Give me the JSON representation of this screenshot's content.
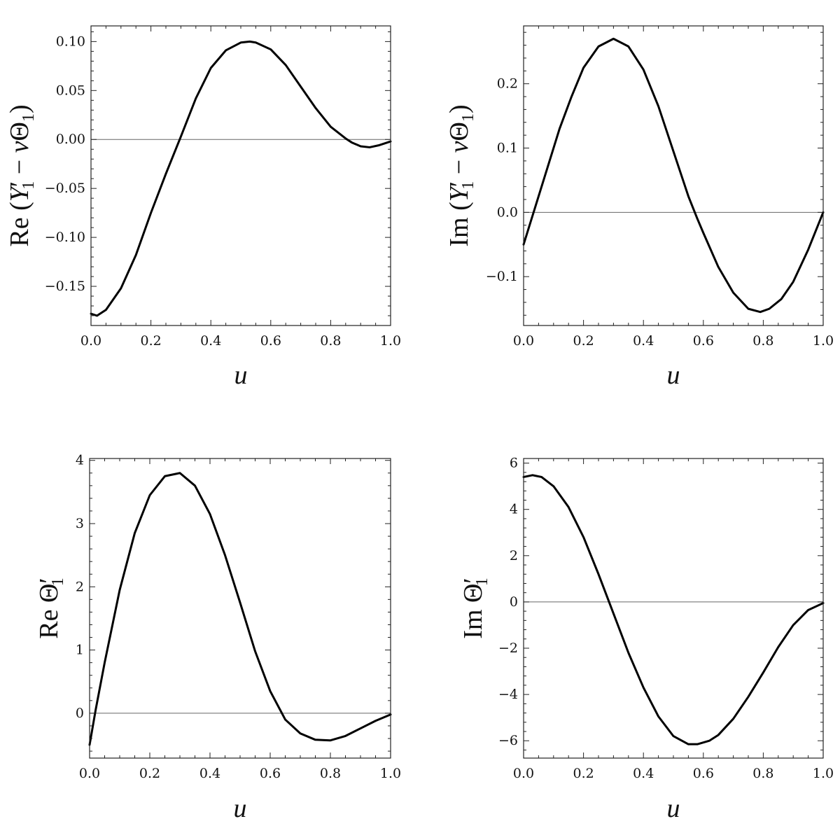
{
  "chart_data": [
    {
      "type": "line",
      "ylabel_parts": [
        "Re",
        " (",
        "Y",
        "′",
        "1",
        " − ",
        "ν",
        "Θ",
        "1",
        ")"
      ],
      "xlabel": "u",
      "xlim": [
        0,
        1
      ],
      "ylim": [
        -0.19,
        0.116
      ],
      "xticks": [
        0.0,
        0.2,
        0.4,
        0.6,
        0.8,
        1.0
      ],
      "xtick_labels": [
        "0.0",
        "0.2",
        "0.4",
        "0.6",
        "0.8",
        "1.0"
      ],
      "yticks": [
        -0.15,
        -0.1,
        -0.05,
        0.0,
        0.05,
        0.1
      ],
      "ytick_labels": [
        "−0.15",
        "−0.10",
        "−0.05",
        "0.00",
        "0.05",
        "0.10"
      ],
      "zero_line": true,
      "series": [
        {
          "x": [
            0.0,
            0.02,
            0.05,
            0.1,
            0.15,
            0.2,
            0.25,
            0.3,
            0.35,
            0.4,
            0.45,
            0.5,
            0.53,
            0.55,
            0.6,
            0.65,
            0.7,
            0.75,
            0.8,
            0.85,
            0.87,
            0.9,
            0.93,
            0.96,
            1.0
          ],
          "y": [
            -0.178,
            -0.18,
            -0.174,
            -0.152,
            -0.118,
            -0.075,
            -0.035,
            0.003,
            0.042,
            0.073,
            0.091,
            0.099,
            0.1,
            0.099,
            0.092,
            0.076,
            0.054,
            0.032,
            0.013,
            0.001,
            -0.003,
            -0.007,
            -0.008,
            -0.006,
            -0.002
          ]
        }
      ]
    },
    {
      "type": "line",
      "ylabel_parts": [
        "Im",
        " (",
        "Y",
        "′",
        "1",
        " − ",
        "ν",
        "Θ",
        "1",
        ")"
      ],
      "xlabel": "u",
      "xlim": [
        0,
        1
      ],
      "ylim": [
        -0.176,
        0.29
      ],
      "xticks": [
        0.0,
        0.2,
        0.4,
        0.6,
        0.8,
        1.0
      ],
      "xtick_labels": [
        "0.0",
        "0.2",
        "0.4",
        "0.6",
        "0.8",
        "1.0"
      ],
      "yticks": [
        -0.1,
        0.0,
        0.1,
        0.2
      ],
      "ytick_labels": [
        "−0.1",
        "0.0",
        "0.1",
        "0.2"
      ],
      "zero_line": true,
      "series": [
        {
          "x": [
            0.0,
            0.02,
            0.04,
            0.08,
            0.12,
            0.16,
            0.2,
            0.25,
            0.3,
            0.35,
            0.4,
            0.45,
            0.5,
            0.55,
            0.58,
            0.6,
            0.65,
            0.7,
            0.75,
            0.79,
            0.82,
            0.86,
            0.9,
            0.95,
            1.0
          ],
          "y": [
            -0.05,
            -0.02,
            0.01,
            0.07,
            0.13,
            0.18,
            0.225,
            0.258,
            0.27,
            0.258,
            0.222,
            0.165,
            0.095,
            0.025,
            -0.01,
            -0.032,
            -0.085,
            -0.125,
            -0.15,
            -0.155,
            -0.15,
            -0.135,
            -0.108,
            -0.058,
            0.0
          ]
        }
      ]
    },
    {
      "type": "line",
      "ylabel_parts": [
        "Re",
        " ",
        "Θ",
        "′",
        "1"
      ],
      "xlabel": "u",
      "xlim": [
        0,
        1
      ],
      "ylim": [
        -0.71,
        4.03
      ],
      "xticks": [
        0.0,
        0.2,
        0.4,
        0.6,
        0.8,
        1.0
      ],
      "xtick_labels": [
        "0.0",
        "0.2",
        "0.4",
        "0.6",
        "0.8",
        "1.0"
      ],
      "yticks": [
        0,
        1,
        2,
        3,
        4
      ],
      "ytick_labels": [
        "0",
        "1",
        "2",
        "3",
        "4"
      ],
      "zero_line": true,
      "series": [
        {
          "x": [
            0.0,
            0.02,
            0.05,
            0.1,
            0.15,
            0.2,
            0.25,
            0.3,
            0.35,
            0.4,
            0.45,
            0.5,
            0.55,
            0.6,
            0.65,
            0.7,
            0.75,
            0.8,
            0.85,
            0.9,
            0.95,
            1.0
          ],
          "y": [
            -0.5,
            0.05,
            0.8,
            1.95,
            2.85,
            3.45,
            3.75,
            3.8,
            3.6,
            3.15,
            2.5,
            1.75,
            0.98,
            0.35,
            -0.1,
            -0.32,
            -0.42,
            -0.43,
            -0.36,
            -0.24,
            -0.12,
            -0.02
          ]
        }
      ]
    },
    {
      "type": "line",
      "ylabel_parts": [
        "Im",
        " ",
        "Θ",
        "′",
        "1"
      ],
      "xlabel": "u",
      "xlim": [
        0,
        1
      ],
      "ylim": [
        -6.75,
        6.2
      ],
      "xticks": [
        0.0,
        0.2,
        0.4,
        0.6,
        0.8,
        1.0
      ],
      "xtick_labels": [
        "0.0",
        "0.2",
        "0.4",
        "0.6",
        "0.8",
        "1.0"
      ],
      "yticks": [
        -6,
        -4,
        -2,
        0,
        2,
        4,
        6
      ],
      "ytick_labels": [
        "−6",
        "−4",
        "−2",
        "0",
        "2",
        "4",
        "6"
      ],
      "zero_line": true,
      "series": [
        {
          "x": [
            0.0,
            0.03,
            0.06,
            0.1,
            0.15,
            0.2,
            0.25,
            0.3,
            0.35,
            0.4,
            0.45,
            0.5,
            0.55,
            0.58,
            0.62,
            0.65,
            0.7,
            0.75,
            0.8,
            0.85,
            0.9,
            0.95,
            1.0
          ],
          "y": [
            5.4,
            5.48,
            5.4,
            5.0,
            4.1,
            2.8,
            1.2,
            -0.5,
            -2.2,
            -3.7,
            -4.95,
            -5.8,
            -6.15,
            -6.15,
            -6.0,
            -5.75,
            -5.05,
            -4.1,
            -3.05,
            -1.95,
            -1.0,
            -0.35,
            -0.05
          ]
        }
      ]
    }
  ]
}
